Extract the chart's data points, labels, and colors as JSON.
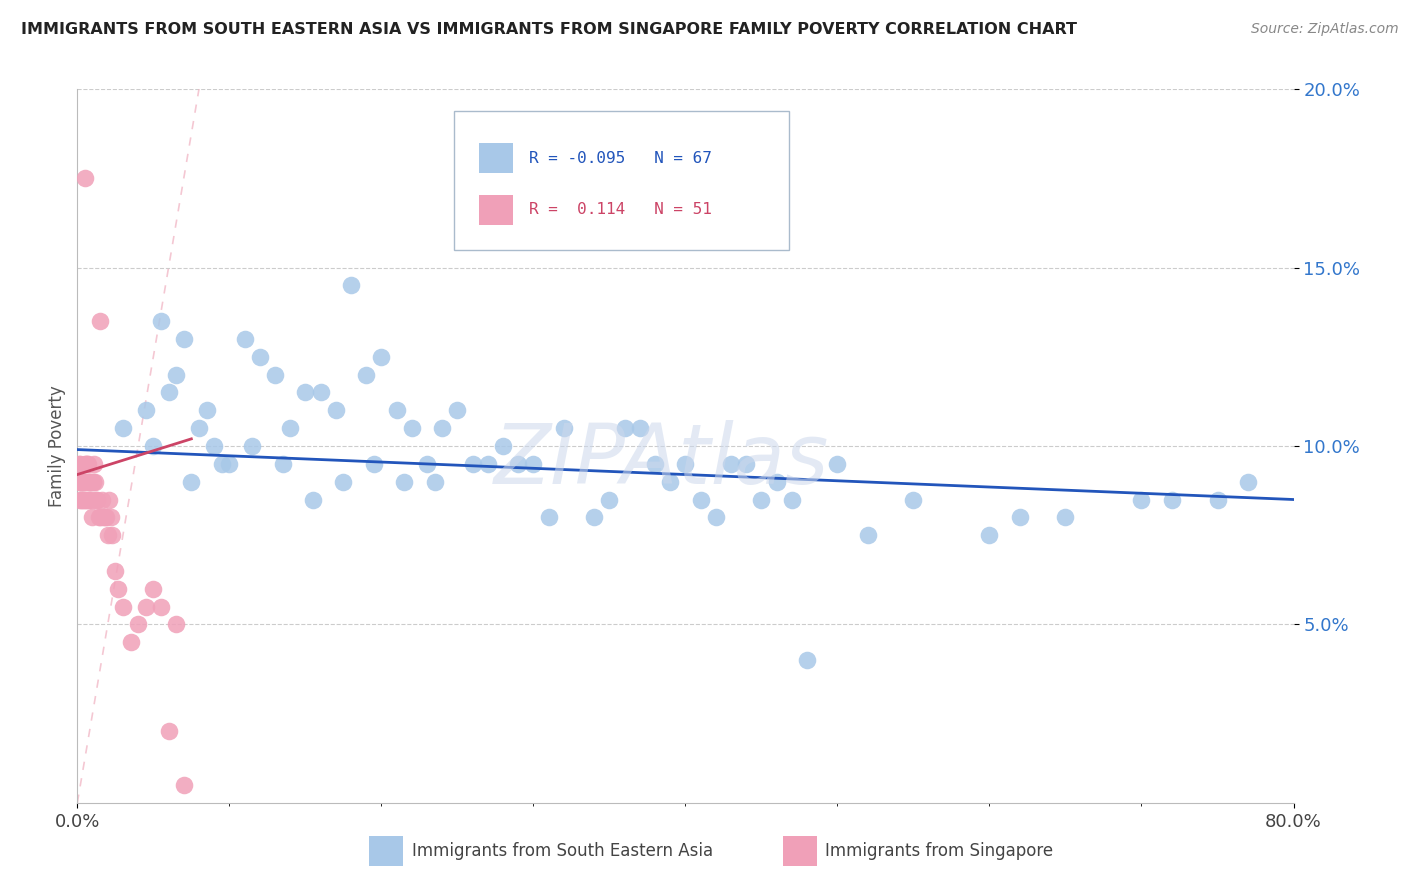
{
  "title": "IMMIGRANTS FROM SOUTH EASTERN ASIA VS IMMIGRANTS FROM SINGAPORE FAMILY POVERTY CORRELATION CHART",
  "source": "Source: ZipAtlas.com",
  "ylabel": "Family Poverty",
  "xlim": [
    0,
    80
  ],
  "ylim": [
    0,
    20
  ],
  "blue_color": "#a8c8e8",
  "pink_color": "#f0a0b8",
  "blue_line_color": "#2255bb",
  "pink_line_color": "#cc4466",
  "diag_line_color": "#f0b0c0",
  "watermark": "ZIPAtlas",
  "legend_label1": "Immigrants from South Eastern Asia",
  "legend_label2": "Immigrants from Singapore",
  "blue_scatter_x": [
    3.0,
    4.5,
    5.5,
    6.0,
    6.5,
    7.0,
    8.0,
    8.5,
    9.0,
    10.0,
    11.0,
    12.0,
    13.0,
    14.0,
    15.0,
    16.0,
    17.0,
    18.0,
    19.0,
    20.0,
    21.0,
    22.0,
    23.0,
    24.0,
    25.0,
    27.0,
    28.0,
    29.0,
    30.0,
    32.0,
    35.0,
    36.0,
    37.0,
    38.0,
    39.0,
    40.0,
    41.0,
    43.0,
    44.0,
    45.0,
    47.0,
    50.0,
    55.0,
    62.0,
    70.0,
    75.0,
    5.0,
    7.5,
    9.5,
    11.5,
    13.5,
    15.5,
    17.5,
    19.5,
    21.5,
    23.5,
    26.0,
    31.0,
    34.0,
    42.0,
    46.0,
    52.0,
    60.0,
    65.0,
    72.0,
    77.0,
    48.0
  ],
  "blue_scatter_y": [
    10.5,
    11.0,
    13.5,
    11.5,
    12.0,
    13.0,
    10.5,
    11.0,
    10.0,
    9.5,
    13.0,
    12.5,
    12.0,
    10.5,
    11.5,
    11.5,
    11.0,
    14.5,
    12.0,
    12.5,
    11.0,
    10.5,
    9.5,
    10.5,
    11.0,
    9.5,
    10.0,
    9.5,
    9.5,
    10.5,
    8.5,
    10.5,
    10.5,
    9.5,
    9.0,
    9.5,
    8.5,
    9.5,
    9.5,
    8.5,
    8.5,
    9.5,
    8.5,
    8.0,
    8.5,
    8.5,
    10.0,
    9.0,
    9.5,
    10.0,
    9.5,
    8.5,
    9.0,
    9.5,
    9.0,
    9.0,
    9.5,
    8.0,
    8.0,
    8.0,
    9.0,
    7.5,
    7.5,
    8.0,
    8.5,
    9.0,
    4.0
  ],
  "pink_scatter_x": [
    0.15,
    0.2,
    0.25,
    0.3,
    0.35,
    0.4,
    0.45,
    0.5,
    0.55,
    0.6,
    0.65,
    0.7,
    0.75,
    0.8,
    0.85,
    0.9,
    0.95,
    1.0,
    1.1,
    1.15,
    1.2,
    1.3,
    1.4,
    1.5,
    1.6,
    1.7,
    1.8,
    1.9,
    2.0,
    2.1,
    2.2,
    2.3,
    2.5,
    2.7,
    3.0,
    3.5,
    4.0,
    4.5,
    5.0,
    5.5,
    6.0,
    6.5,
    7.0,
    0.1,
    0.12,
    0.18,
    0.22,
    0.42,
    0.62,
    0.82,
    1.05
  ],
  "pink_scatter_y": [
    9.5,
    9.0,
    8.5,
    9.0,
    8.5,
    9.0,
    8.5,
    9.5,
    8.5,
    9.5,
    8.5,
    9.5,
    9.0,
    8.5,
    9.0,
    8.5,
    8.0,
    9.0,
    9.5,
    9.0,
    8.5,
    8.5,
    8.0,
    8.0,
    8.5,
    8.0,
    8.0,
    8.0,
    7.5,
    8.5,
    8.0,
    7.5,
    6.5,
    6.0,
    5.5,
    4.5,
    5.0,
    5.5,
    6.0,
    5.5,
    2.0,
    5.0,
    0.5,
    9.5,
    9.0,
    8.5,
    9.0,
    9.0,
    9.5,
    9.0,
    9.0
  ],
  "pink_outlier_x": [
    0.5
  ],
  "pink_outlier_y": [
    17.5
  ],
  "pink_outlier2_x": [
    1.5
  ],
  "pink_outlier2_y": [
    13.5
  ],
  "blue_line_x0": 0,
  "blue_line_y0": 9.9,
  "blue_line_x1": 80,
  "blue_line_y1": 8.5,
  "pink_line_x0": 0.0,
  "pink_line_y0": 9.2,
  "pink_line_x1": 7.5,
  "pink_line_y1": 10.2,
  "diag_line_x0": 0,
  "diag_line_y0": 0,
  "diag_line_x1": 8.0,
  "diag_line_y1": 20.0
}
